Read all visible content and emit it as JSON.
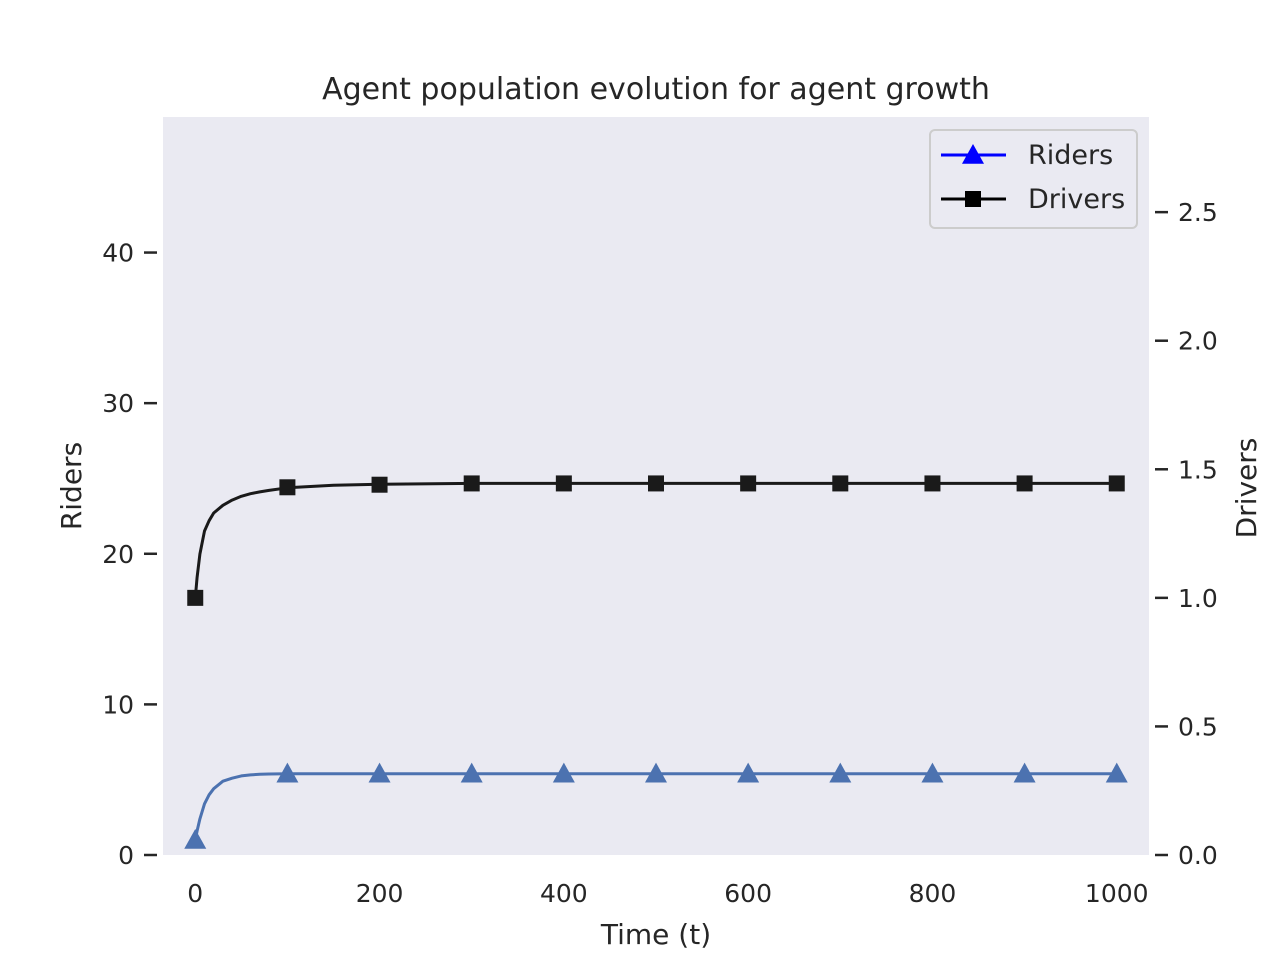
{
  "chart_data": {
    "type": "line",
    "title": "Agent population evolution for agent growth",
    "xlabel": "Time (t)",
    "ylabel_left": "Riders",
    "ylabel_right": "Drivers",
    "xlim": [
      -35,
      1035
    ],
    "ylim_left": [
      0,
      49
    ],
    "ylim_right": [
      0,
      2.87
    ],
    "xticks": [
      0,
      200,
      400,
      600,
      800,
      1000
    ],
    "xtick_labels": [
      "0",
      "200",
      "400",
      "600",
      "800",
      "1000"
    ],
    "yticks_left": [
      0,
      10,
      20,
      30,
      40
    ],
    "ytick_labels_left": [
      "0",
      "10",
      "20",
      "30",
      "40"
    ],
    "yticks_right": [
      0.0,
      0.5,
      1.0,
      1.5,
      2.0,
      2.5
    ],
    "ytick_labels_right": [
      "0.0",
      "0.5",
      "1.0",
      "1.5",
      "2.0",
      "2.5"
    ],
    "grid": false,
    "legend_position": "top-right",
    "background": "#eaeaf2",
    "series": [
      {
        "name": "Riders",
        "axis": "left",
        "marker": "triangle",
        "line_color": "#4c72b0",
        "legend_color": "#0000ff",
        "x": [
          0,
          2,
          5,
          10,
          15,
          20,
          30,
          40,
          50,
          60,
          70,
          80,
          100,
          200,
          300,
          400,
          500,
          600,
          700,
          800,
          900,
          1000
        ],
        "y": [
          1.0,
          1.6,
          2.4,
          3.4,
          4.0,
          4.4,
          4.9,
          5.1,
          5.25,
          5.32,
          5.36,
          5.38,
          5.4,
          5.4,
          5.4,
          5.4,
          5.4,
          5.4,
          5.4,
          5.4,
          5.4,
          5.4
        ],
        "marker_x": [
          0,
          100,
          200,
          300,
          400,
          500,
          600,
          700,
          800,
          900,
          1000
        ],
        "marker_y": [
          1.0,
          5.4,
          5.4,
          5.4,
          5.4,
          5.4,
          5.4,
          5.4,
          5.4,
          5.4,
          5.4
        ]
      },
      {
        "name": "Drivers",
        "axis": "right",
        "marker": "square",
        "line_color": "#1a1a1a",
        "legend_color": "#000000",
        "x": [
          0,
          2,
          5,
          10,
          15,
          20,
          30,
          40,
          50,
          60,
          70,
          80,
          100,
          150,
          200,
          300,
          400,
          500,
          600,
          700,
          800,
          900,
          1000
        ],
        "y": [
          1.0,
          1.08,
          1.17,
          1.26,
          1.3,
          1.33,
          1.36,
          1.38,
          1.395,
          1.405,
          1.412,
          1.418,
          1.428,
          1.438,
          1.442,
          1.445,
          1.445,
          1.445,
          1.445,
          1.445,
          1.445,
          1.445,
          1.445
        ],
        "marker_x": [
          0,
          100,
          200,
          300,
          400,
          500,
          600,
          700,
          800,
          900,
          1000
        ],
        "marker_y": [
          1.0,
          1.43,
          1.44,
          1.445,
          1.445,
          1.445,
          1.445,
          1.445,
          1.445,
          1.445,
          1.445
        ]
      }
    ]
  }
}
